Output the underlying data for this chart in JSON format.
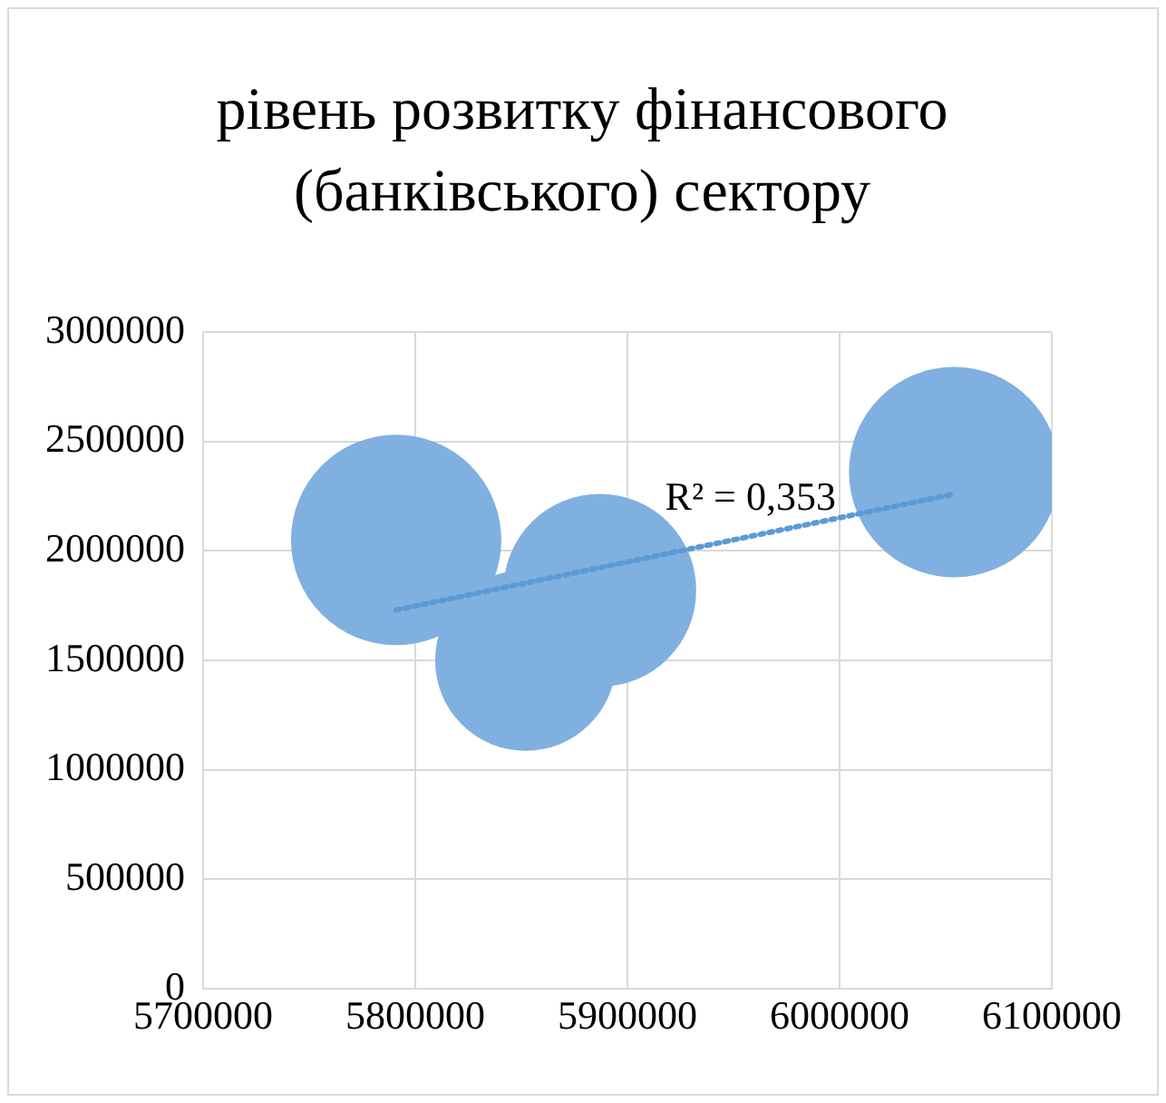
{
  "chart_data": {
    "type": "bubble",
    "title": "рівень розвитку фінансового (банківського) сектору",
    "x": [
      5791000,
      5852000,
      5887000,
      6054000
    ],
    "series": [
      {
        "color": "#80b0e0",
        "values": [
          2050000,
          1500000,
          1820000,
          2360000
        ],
        "sizes": [
          1,
          0.74,
          0.84,
          1
        ]
      },
      {
        "type": "line",
        "color": "#5b9bd5",
        "line_style": "dotted",
        "x": [
          5791000,
          6054000
        ],
        "values": [
          1730000,
          2260000
        ]
      }
    ],
    "xlim": [
      5700000,
      6100000
    ],
    "xticks": [
      5700000,
      5800000,
      5900000,
      6000000,
      6100000
    ],
    "ylim": [
      0,
      3000000
    ],
    "yticks": [
      0,
      500000,
      1000000,
      1500000,
      2000000,
      2500000,
      3000000
    ],
    "grid": true,
    "legend": false,
    "annotations": [
      "R² = 0,353"
    ]
  }
}
